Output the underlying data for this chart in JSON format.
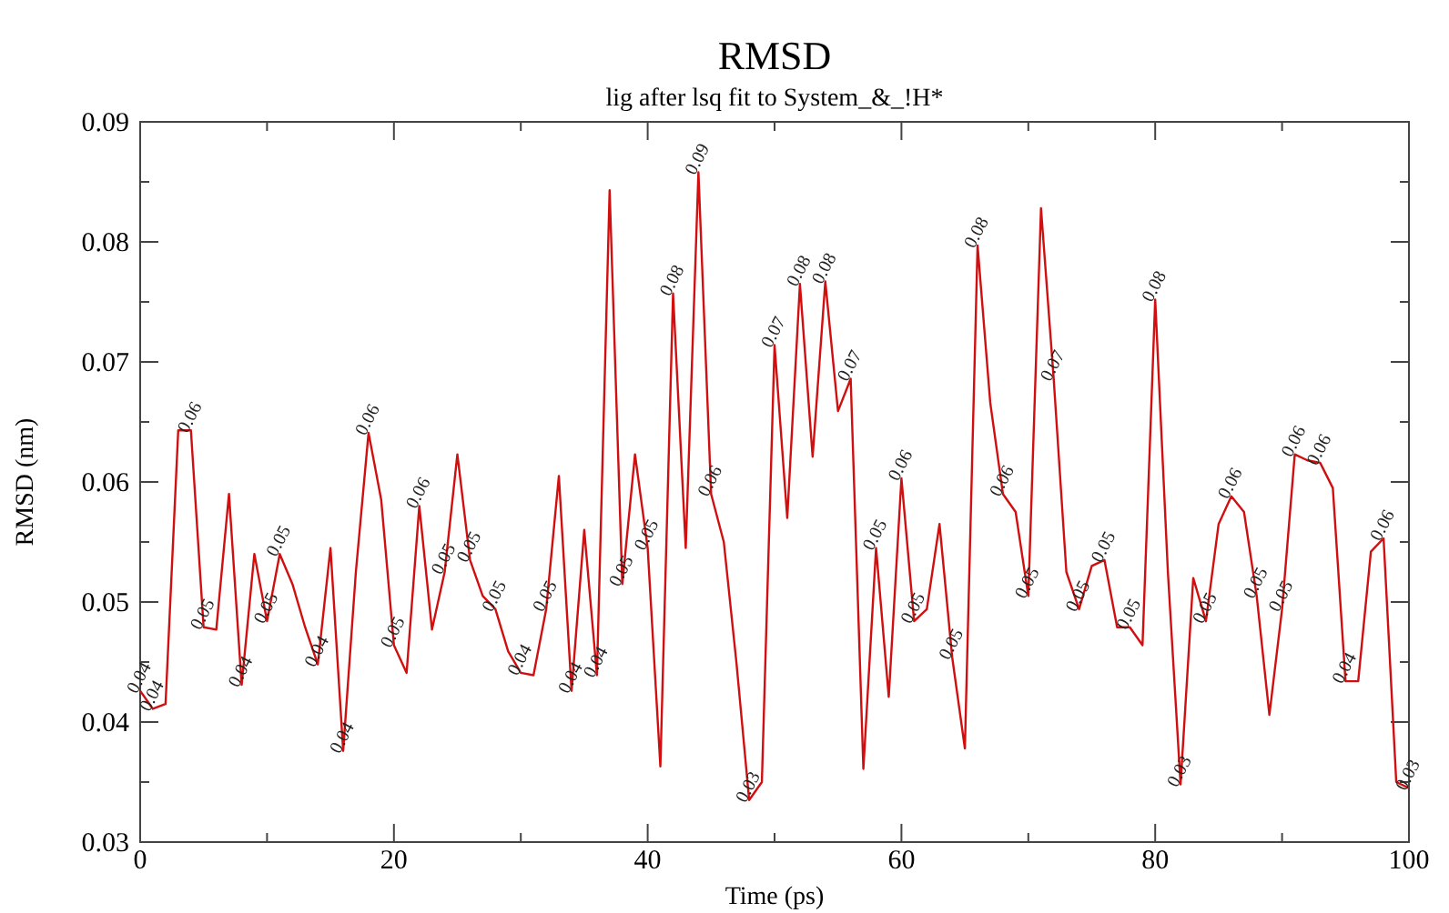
{
  "chart_data": {
    "type": "line",
    "title": "RMSD",
    "subtitle": "lig after lsq fit to System_&_!H*",
    "xlabel": "Time (ps)",
    "ylabel": "RMSD (nm)",
    "xlim": [
      0,
      100
    ],
    "xticks": [
      0,
      {
        "value": 10,
        "label": null
      },
      20,
      {
        "value": 30,
        "label": null
      },
      40,
      {
        "value": 50,
        "label": null
      },
      60,
      {
        "value": 70,
        "label": null
      },
      80,
      {
        "value": 90,
        "label": null
      },
      100
    ],
    "ylim": [
      0.03,
      0.09
    ],
    "yticks": [
      0.03,
      {
        "value": 0.035,
        "label": null
      },
      0.04,
      {
        "value": 0.045,
        "label": null
      },
      0.05,
      {
        "value": 0.055,
        "label": null
      },
      0.06,
      {
        "value": 0.065,
        "label": null
      },
      0.07,
      {
        "value": 0.075,
        "label": null
      },
      0.08,
      {
        "value": 0.085,
        "label": null
      },
      0.09
    ],
    "grid": false,
    "marker": "none",
    "line_style": "solid",
    "x": [
      0,
      1,
      2,
      3,
      4,
      5,
      6,
      7,
      8,
      9,
      10,
      11,
      12,
      13,
      14,
      15,
      16,
      17,
      18,
      19,
      20,
      21,
      22,
      23,
      24,
      25,
      26,
      27,
      28,
      29,
      30,
      31,
      32,
      33,
      34,
      35,
      36,
      37,
      38,
      39,
      40,
      41,
      42,
      43,
      44,
      45,
      46,
      47,
      48,
      49,
      50,
      51,
      52,
      53,
      54,
      55,
      56,
      57,
      58,
      59,
      60,
      61,
      62,
      63,
      64,
      65,
      66,
      67,
      68,
      69,
      70,
      71,
      72,
      73,
      74,
      75,
      76,
      77,
      78,
      79,
      80,
      81,
      82,
      83,
      84,
      85,
      86,
      87,
      88,
      89,
      90,
      91,
      92,
      93,
      94,
      95,
      96,
      97,
      98,
      99,
      100
    ],
    "series": [
      {
        "color": "#d01010",
        "values": [
          0.0426,
          0.0411,
          0.0415,
          0.0643,
          0.0643,
          0.0479,
          0.0477,
          0.059,
          0.0431,
          0.054,
          0.0484,
          0.054,
          0.0515,
          0.0479,
          0.0448,
          0.0545,
          0.0376,
          0.0525,
          0.0641,
          0.0585,
          0.0464,
          0.0441,
          0.058,
          0.0477,
          0.0525,
          0.0623,
          0.0535,
          0.0505,
          0.0494,
          0.0459,
          0.0441,
          0.0439,
          0.0494,
          0.0605,
          0.0426,
          0.056,
          0.0439,
          0.0843,
          0.0515,
          0.0623,
          0.0545,
          0.0363,
          0.0757,
          0.0545,
          0.0858,
          0.059,
          0.055,
          0.0449,
          0.0335,
          0.035,
          0.0714,
          0.057,
          0.0765,
          0.0621,
          0.0767,
          0.0659,
          0.0686,
          0.0361,
          0.0545,
          0.0421,
          0.0603,
          0.0484,
          0.0494,
          0.0565,
          0.0454,
          0.0378,
          0.0797,
          0.0666,
          0.059,
          0.0575,
          0.0505,
          0.0828,
          0.0686,
          0.0525,
          0.0494,
          0.053,
          0.0535,
          0.0479,
          0.0479,
          0.0464,
          0.0752,
          0.0525,
          0.0348,
          0.052,
          0.0484,
          0.0565,
          0.0588,
          0.0575,
          0.0505,
          0.0406,
          0.0494,
          0.0623,
          0.0618,
          0.0616,
          0.0595,
          0.0434,
          0.0434,
          0.0542,
          0.0553,
          0.035,
          0.0345
        ],
        "value_labels": [
          "0.04",
          "0.04",
          null,
          null,
          "0.06",
          "0.05",
          null,
          null,
          "0.04",
          null,
          "0.05",
          "0.05",
          null,
          null,
          "0.04",
          null,
          "0.04",
          null,
          "0.06",
          null,
          "0.05",
          null,
          "0.06",
          null,
          "0.05",
          null,
          "0.05",
          null,
          "0.05",
          null,
          "0.04",
          null,
          "0.05",
          null,
          "0.04",
          null,
          "0.04",
          null,
          "0.05",
          null,
          "0.05",
          null,
          "0.08",
          null,
          "0.09",
          "0.06",
          null,
          null,
          "0.03",
          null,
          "0.07",
          null,
          "0.08",
          null,
          "0.08",
          null,
          "0.07",
          null,
          "0.05",
          null,
          "0.06",
          "0.05",
          null,
          null,
          "0.05",
          null,
          "0.08",
          null,
          "0.06",
          null,
          "0.05",
          null,
          "0.07",
          null,
          "0.05",
          null,
          "0.05",
          null,
          "0.05",
          null,
          "0.08",
          null,
          "0.03",
          null,
          "0.05",
          null,
          "0.06",
          null,
          "0.05",
          null,
          "0.05",
          "0.06",
          null,
          "0.06",
          null,
          "0.04",
          null,
          null,
          "0.06",
          null,
          "0.03"
        ]
      }
    ]
  }
}
